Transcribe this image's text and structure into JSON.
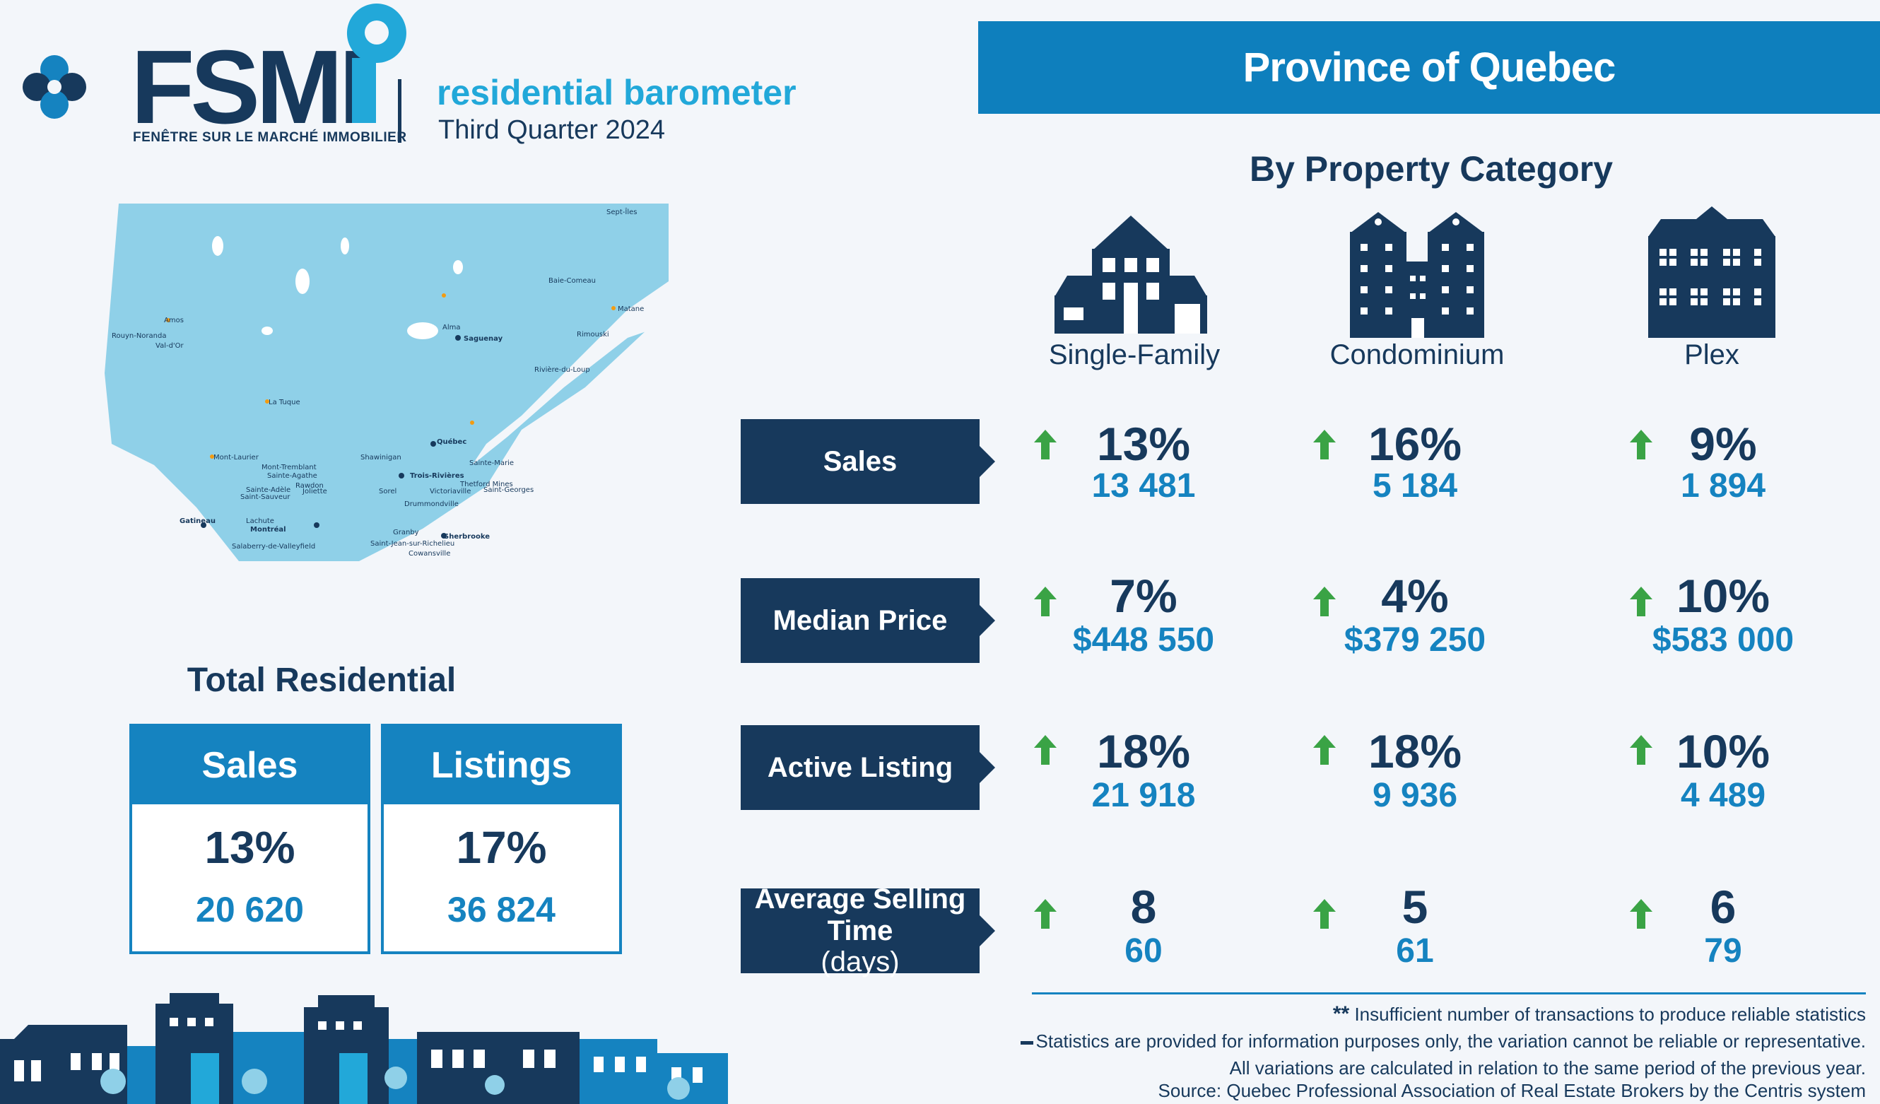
{
  "brand": {
    "logo": "FSMI",
    "logo_subtitle": "FENÊTRE SUR LE MARCHÉ IMMOBILIER",
    "title": "residential barometer",
    "period": "Third Quarter 2024"
  },
  "region": "Province of Quebec",
  "by_category_title": "By Property Category",
  "map": {
    "cities": [
      "Sept-Îles",
      "Baie-Comeau",
      "Matane",
      "Rimouski",
      "Alma",
      "Saguenay",
      "Rivière-du-Loup",
      "Amos",
      "Rouyn-Noranda",
      "Val-d'Or",
      "La Tuque",
      "Québec",
      "Sainte-Marie",
      "Mont-Laurier",
      "Shawinigan",
      "Mont-Tremblant",
      "Sainte-Agathe",
      "Trois-Rivières",
      "Rawdon",
      "Thetford Mines",
      "Saint-Georges",
      "Sainte-Adèle",
      "Saint-Sauveur",
      "Joliette",
      "Sorel",
      "Victoriaville",
      "Drummondville",
      "Gatineau",
      "Lachute",
      "Montréal",
      "Granby",
      "Sherbrooke",
      "Salaberry-de-Valleyfield",
      "Saint-Jean-sur-Richelieu",
      "Cowansville"
    ]
  },
  "total": {
    "title": "Total Residential",
    "sales": {
      "label": "Sales",
      "pct": "13%",
      "value": "20 620"
    },
    "listings": {
      "label": "Listings",
      "pct": "17%",
      "value": "36 824"
    }
  },
  "categories": [
    "Single-Family",
    "Condominium",
    "Plex"
  ],
  "metrics": [
    {
      "label": "Sales",
      "unit": "",
      "cells": [
        {
          "pct": "13%",
          "value": "13 481"
        },
        {
          "pct": "16%",
          "value": "5 184"
        },
        {
          "pct": "9%",
          "value": "1 894"
        }
      ]
    },
    {
      "label": "Median Price",
      "unit": "",
      "cells": [
        {
          "pct": "7%",
          "value": "$448 550"
        },
        {
          "pct": "4%",
          "value": "$379 250"
        },
        {
          "pct": "10%",
          "value": "$583 000"
        }
      ]
    },
    {
      "label": "Active Listing",
      "unit": "",
      "cells": [
        {
          "pct": "18%",
          "value": "21 918"
        },
        {
          "pct": "18%",
          "value": "9 936"
        },
        {
          "pct": "10%",
          "value": "4 489"
        }
      ]
    },
    {
      "label": "Average Selling Time",
      "unit": "(days)",
      "cells": [
        {
          "pct": "8",
          "value": "60"
        },
        {
          "pct": "5",
          "value": "61"
        },
        {
          "pct": "6",
          "value": "79"
        }
      ]
    }
  ],
  "notes": {
    "symbol_stars": "**",
    "insufficient": "Insufficient number of transactions to produce reliable statistics",
    "unreliable": "Statistics are provided for information purposes only, the variation cannot be reliable or representative.",
    "variations": "All variations are calculated in relation to the same period of the previous year.",
    "source": "Source:  Quebec Professional Association of Real Estate Brokers by the Centris system"
  },
  "colors": {
    "navy": "#17395c",
    "blue": "#1583c0",
    "banner": "#0e7fbd",
    "accent": "#22a8d9",
    "up": "#3aa345",
    "map": "#8fd0e8"
  }
}
